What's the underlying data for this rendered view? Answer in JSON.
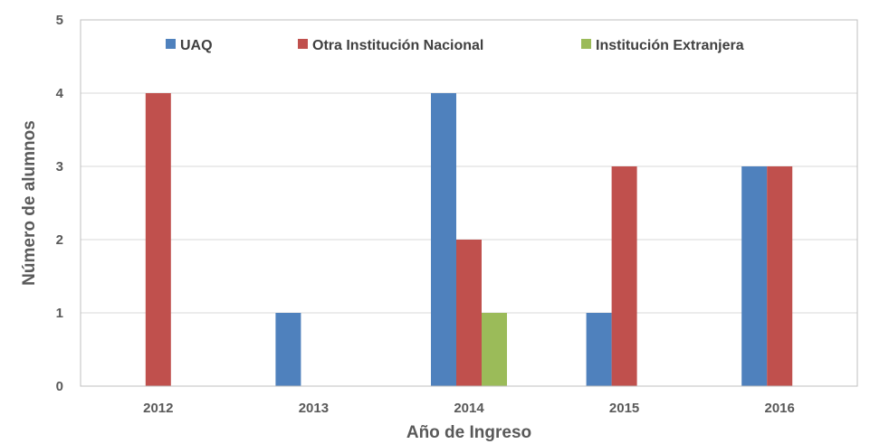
{
  "chart_data": {
    "type": "bar",
    "categories": [
      "2012",
      "2013",
      "2014",
      "2015",
      "2016"
    ],
    "series": [
      {
        "name": "UAQ",
        "values": [
          0,
          1,
          4,
          1,
          3
        ],
        "color": "#4F81BD"
      },
      {
        "name": "Otra Institución Nacional",
        "values": [
          4,
          0,
          2,
          3,
          3
        ],
        "color": "#C0504D"
      },
      {
        "name": "Institución Extranjera",
        "values": [
          0,
          0,
          1,
          0,
          0
        ],
        "color": "#9BBB59"
      }
    ],
    "yticks": [
      "0",
      "1",
      "2",
      "3",
      "4",
      "5"
    ],
    "ylim": [
      0,
      5
    ],
    "xlabel": "Año de Ingreso",
    "ylabel": "Número de alumnos",
    "title": "",
    "grid": true,
    "legend_position": "top-inside"
  }
}
